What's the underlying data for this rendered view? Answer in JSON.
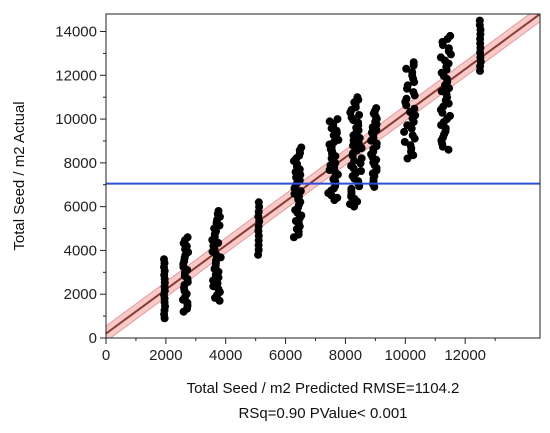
{
  "chart_data": {
    "type": "scatter",
    "title": "",
    "xlabel": "Total Seed / m2 Predicted RMSE=1104.2",
    "xlabel_line2": "RSq=0.90 PValue< 0.001",
    "ylabel": "Total Seed / m2 Actual",
    "xlim": [
      0,
      14500
    ],
    "ylim": [
      0,
      14800
    ],
    "x_ticks": [
      0,
      2000,
      4000,
      6000,
      8000,
      10000,
      12000
    ],
    "y_ticks": [
      0,
      2000,
      4000,
      6000,
      8000,
      10000,
      12000,
      14000
    ],
    "grid": false,
    "legend": "none",
    "reference_line_mean_y": 7050,
    "fit_line": {
      "x": [
        0,
        14500
      ],
      "y": [
        200,
        14800
      ]
    },
    "confidence_band_halfwidth": 350,
    "clusters": [
      {
        "x": 1950,
        "y_min": 900,
        "y_max": 3600,
        "n": 16,
        "width": 40
      },
      {
        "x": 2650,
        "y_min": 1200,
        "y_max": 4600,
        "n": 26,
        "width": 200
      },
      {
        "x": 3700,
        "y_min": 1700,
        "y_max": 5800,
        "n": 32,
        "width": 300
      },
      {
        "x": 5100,
        "y_min": 3800,
        "y_max": 6200,
        "n": 12,
        "width": 40
      },
      {
        "x": 6400,
        "y_min": 4600,
        "y_max": 8700,
        "n": 34,
        "width": 250
      },
      {
        "x": 7600,
        "y_min": 6300,
        "y_max": 10000,
        "n": 36,
        "width": 350
      },
      {
        "x": 8350,
        "y_min": 6000,
        "y_max": 11000,
        "n": 44,
        "width": 400
      },
      {
        "x": 8950,
        "y_min": 6900,
        "y_max": 10500,
        "n": 30,
        "width": 200
      },
      {
        "x": 10150,
        "y_min": 8200,
        "y_max": 12600,
        "n": 30,
        "width": 400
      },
      {
        "x": 11350,
        "y_min": 8600,
        "y_max": 13800,
        "n": 38,
        "width": 350
      },
      {
        "x": 12500,
        "y_min": 12200,
        "y_max": 14500,
        "n": 12,
        "width": 50
      }
    ],
    "colors": {
      "points": "#000000",
      "fit_line": "#8b3a2f",
      "band": "#f4b8b8",
      "mean_line": "#2f4fd8",
      "frame": "#222222"
    }
  }
}
